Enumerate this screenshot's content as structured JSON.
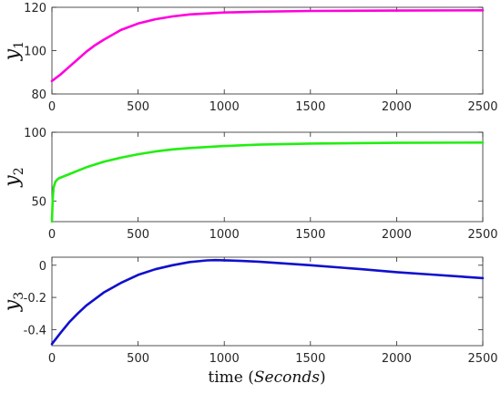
{
  "chart_data": [
    {
      "type": "line",
      "ylabel": "y",
      "ylabel_sub": "1",
      "xlim": [
        0,
        2500
      ],
      "ylim": [
        80,
        120
      ],
      "xticks": [
        0,
        500,
        1000,
        1500,
        2000,
        2500
      ],
      "yticks": [
        80,
        100,
        120
      ],
      "color": "#ff00dd",
      "x": [
        0,
        50,
        100,
        150,
        200,
        250,
        300,
        400,
        500,
        600,
        700,
        800,
        1000,
        1200,
        1500,
        2000,
        2500
      ],
      "y": [
        86,
        89,
        92.5,
        96,
        99.5,
        102.5,
        105,
        109.5,
        112.5,
        114.5,
        115.8,
        116.7,
        117.6,
        118,
        118.3,
        118.5,
        118.6
      ]
    },
    {
      "type": "line",
      "ylabel": "y",
      "ylabel_sub": "2",
      "xlim": [
        0,
        2500
      ],
      "ylim": [
        35,
        100
      ],
      "xticks": [
        0,
        500,
        1000,
        1500,
        2000,
        2500
      ],
      "yticks": [
        50,
        100
      ],
      "color": "#22ee11",
      "x": [
        0,
        5,
        10,
        20,
        30,
        40,
        60,
        100,
        150,
        200,
        300,
        400,
        500,
        600,
        700,
        800,
        1000,
        1200,
        1500,
        2000,
        2500
      ],
      "y": [
        35,
        52,
        60,
        64,
        65.5,
        66.5,
        67.5,
        69.5,
        72,
        74.5,
        78.5,
        81.5,
        84,
        86,
        87.5,
        88.5,
        90,
        91,
        91.8,
        92.3,
        92.5
      ]
    },
    {
      "type": "line",
      "ylabel": "y",
      "ylabel_sub": "3",
      "xlim": [
        0,
        2500
      ],
      "ylim": [
        -0.5,
        0.05
      ],
      "xticks": [
        0,
        500,
        1000,
        1500,
        2000,
        2500
      ],
      "yticks": [
        0,
        -0.2,
        -0.4
      ],
      "ytick_labels": [
        "0",
        "-0.2",
        "-0.4"
      ],
      "color": "#1010cc",
      "x": [
        0,
        50,
        100,
        150,
        200,
        300,
        400,
        500,
        600,
        700,
        800,
        900,
        950,
        1000,
        1100,
        1200,
        1500,
        1800,
        2000,
        2200,
        2500
      ],
      "y": [
        -0.49,
        -0.42,
        -0.355,
        -0.3,
        -0.25,
        -0.17,
        -0.11,
        -0.06,
        -0.025,
        0.0,
        0.02,
        0.03,
        0.032,
        0.031,
        0.027,
        0.022,
        0.0,
        -0.025,
        -0.043,
        -0.058,
        -0.08
      ]
    }
  ],
  "xlabel_prefix": "time (",
  "xlabel_unit": "Seconds",
  "xlabel_suffix": ")"
}
